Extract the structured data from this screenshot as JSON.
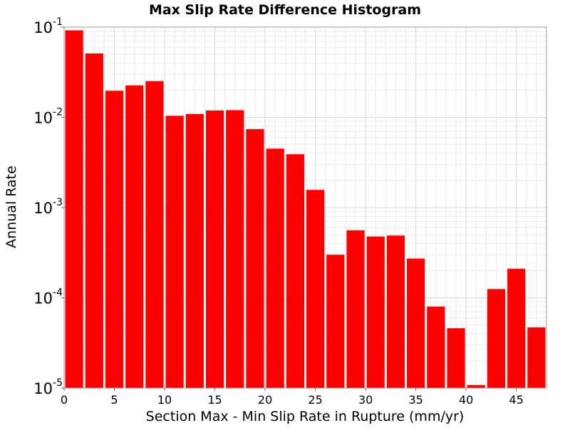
{
  "chart_data": {
    "type": "bar",
    "title": "Max Slip Rate Difference Histogram",
    "xlabel": "Section Max - Min Slip Rate in Rupture (mm/yr)",
    "ylabel": "Annual Rate",
    "yscale": "log",
    "xlim": [
      0,
      48
    ],
    "ylim": [
      1e-05,
      0.1
    ],
    "x_ticks": [
      "0",
      "5",
      "10",
      "15",
      "20",
      "25",
      "30",
      "35",
      "40",
      "45"
    ],
    "y_ticks": [
      {
        "base": "10",
        "exp": "-5"
      },
      {
        "base": "10",
        "exp": "-4"
      },
      {
        "base": "10",
        "exp": "-3"
      },
      {
        "base": "10",
        "exp": "-2"
      },
      {
        "base": "10",
        "exp": "-1"
      }
    ],
    "bin_width": 2,
    "bin_starts": [
      0,
      2,
      4,
      6,
      8,
      10,
      12,
      14,
      16,
      18,
      20,
      22,
      24,
      26,
      28,
      30,
      32,
      34,
      36,
      38,
      40,
      42,
      44,
      46
    ],
    "values": [
      0.092,
      0.051,
      0.0197,
      0.0226,
      0.0252,
      0.0104,
      0.0109,
      0.0119,
      0.012,
      0.0074,
      0.0045,
      0.0039,
      0.00157,
      0.0003,
      0.00056,
      0.000478,
      0.00049,
      0.000272,
      8e-05,
      4.6e-05,
      1.08e-05,
      0.000125,
      0.00021,
      4.7e-05
    ],
    "bar_color": "#ff0000",
    "grid": true
  }
}
